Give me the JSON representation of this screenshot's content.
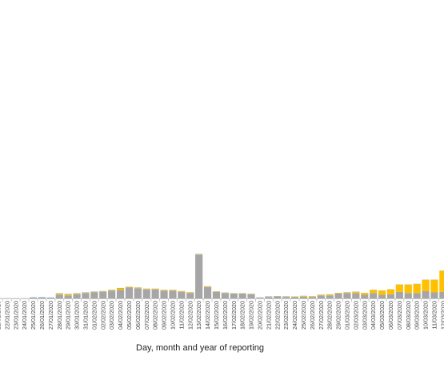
{
  "chart_data": {
    "type": "bar",
    "stacked": true,
    "xlabel": "Day, month and year of reporting",
    "categories": [
      "21/01/2020",
      "22/01/2020",
      "23/01/2020",
      "24/01/2020",
      "25/01/2020",
      "26/01/2020",
      "27/01/2020",
      "28/01/2020",
      "29/01/2020",
      "30/01/2020",
      "31/01/2020",
      "01/02/2020",
      "02/02/2020",
      "03/02/2020",
      "04/02/2020",
      "05/02/2020",
      "06/02/2020",
      "07/02/2020",
      "08/02/2020",
      "09/02/2020",
      "10/02/2020",
      "11/02/2020",
      "12/02/2020",
      "13/02/2020",
      "14/02/2020",
      "15/02/2020",
      "16/02/2020",
      "17/02/2020",
      "18/02/2020",
      "19/02/2020",
      "20/02/2020",
      "21/02/2020",
      "22/02/2020",
      "23/02/2020",
      "24/02/2020",
      "25/02/2020",
      "26/02/2020",
      "27/02/2020",
      "28/02/2020",
      "29/02/2020",
      "01/03/2020",
      "02/03/2020",
      "03/03/2020",
      "04/03/2020",
      "05/03/2020",
      "06/03/2020",
      "07/03/2020",
      "08/03/2020",
      "09/03/2020",
      "10/03/2020",
      "11/03/2020",
      "12/03/2020",
      "13/03/2020"
    ],
    "series": [
      {
        "color": "#a6a6a6",
        "values": [
          0.2,
          0.2,
          0.2,
          0.2,
          0.5,
          0.6,
          0.5,
          3.2,
          2.5,
          3.5,
          4.5,
          5.0,
          5.5,
          6.5,
          7.0,
          9.0,
          8.5,
          7.5,
          7.5,
          6.5,
          6.5,
          5.5,
          4.5,
          36.5,
          9.5,
          5.5,
          4.5,
          4.0,
          4.0,
          3.5,
          0.6,
          1.2,
          1.5,
          1.2,
          1.0,
          1.5,
          1.2,
          2.5,
          2.5,
          4.0,
          4.5,
          4.5,
          3.0,
          4.5,
          3.0,
          3.5,
          5.5,
          4.5,
          4.5,
          6.0,
          5.0,
          5.5,
          4.5
        ]
      },
      {
        "color": "#ffc000",
        "values": [
          0,
          0,
          0,
          0,
          0,
          0,
          0,
          0.8,
          1.0,
          0.5,
          0.3,
          0.4,
          0.4,
          0.6,
          1.5,
          0.6,
          0.5,
          0.5,
          0.5,
          0.5,
          0.5,
          0.5,
          0.5,
          0.3,
          0.5,
          0.3,
          0.3,
          0.2,
          0.2,
          0.3,
          0.1,
          0.2,
          0.2,
          0.3,
          0.5,
          0.5,
          0.5,
          0.5,
          0.8,
          0.5,
          0.5,
          1.0,
          1.5,
          2.5,
          3.5,
          4.0,
          6.0,
          7.0,
          7.5,
          9.5,
          10.5,
          17.5,
          26.0
        ]
      },
      {
        "color": "#4472c4",
        "values": [
          0,
          0,
          0,
          0,
          0.3,
          0.3,
          0.2,
          0.2,
          0.2,
          0.2,
          0.2,
          0.2,
          0.2,
          0.1,
          0.2,
          0.1,
          0.1,
          0.1,
          0.1,
          0.1,
          0.1,
          0.1,
          0.1,
          0.2,
          0.1,
          0.1,
          0.1,
          0.1,
          0.1,
          0.1,
          0.1,
          0.2,
          0.2,
          0.2,
          0.1,
          0.1,
          0.1,
          0.1,
          0.1,
          0.1,
          0.1,
          0.1,
          0.1,
          0.1,
          0.1,
          0.1,
          0.1,
          0.1,
          0.1,
          0.1,
          0.1,
          0.1,
          0.1
        ]
      }
    ]
  }
}
